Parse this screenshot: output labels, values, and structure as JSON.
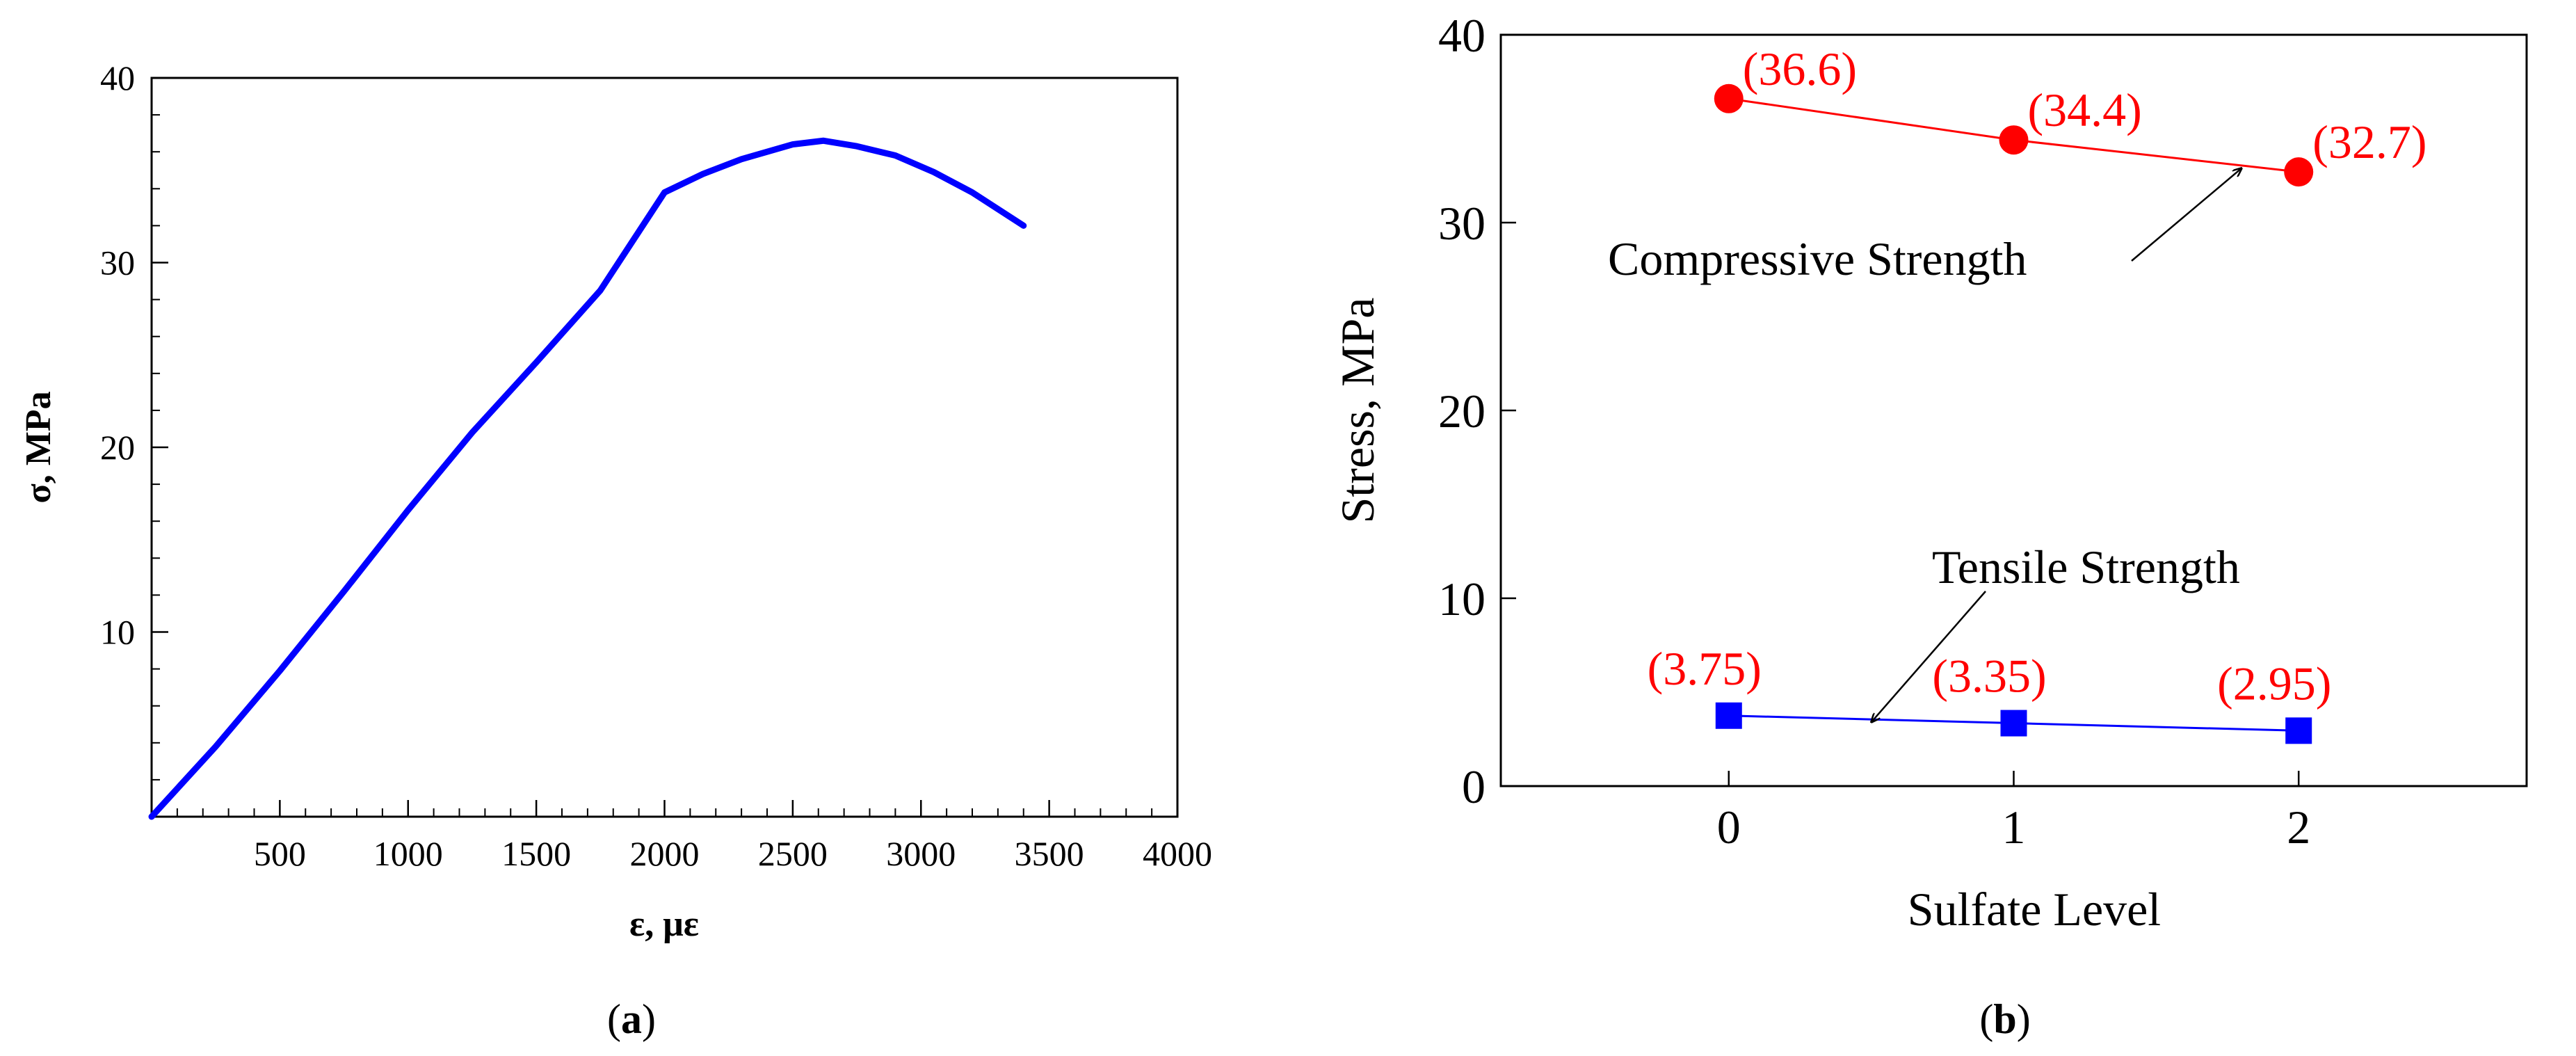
{
  "chart_data": [
    {
      "id": "a",
      "type": "line",
      "caption_letter": "a",
      "xlabel": "ε, με",
      "ylabel": "σ, MPa",
      "xlim": [
        0,
        4000
      ],
      "ylim": [
        0,
        40
      ],
      "x_ticks": [
        500,
        1000,
        1500,
        2000,
        2500,
        3000,
        3500,
        4000
      ],
      "x_tick_labels": [
        "500",
        "1000",
        "1500",
        "2000",
        "2500",
        "3000",
        "3500",
        "4000"
      ],
      "x_minor_step": 100,
      "y_ticks": [
        10,
        20,
        30,
        40
      ],
      "y_tick_labels": [
        "10",
        "20",
        "30",
        "40"
      ],
      "y_minor_step": 2,
      "grid": false,
      "series": [
        {
          "color": "#0000ff",
          "x": [
            0,
            250,
            500,
            750,
            1000,
            1250,
            1500,
            1750,
            2000,
            2150,
            2300,
            2500,
            2620,
            2750,
            2900,
            3050,
            3200,
            3400
          ],
          "y": [
            0,
            3.8,
            7.9,
            12.2,
            16.6,
            20.8,
            24.6,
            28.5,
            33.8,
            34.8,
            35.6,
            36.4,
            36.6,
            36.3,
            35.8,
            34.9,
            33.8,
            32.0
          ]
        }
      ]
    },
    {
      "id": "b",
      "type": "line",
      "caption_letter": "b",
      "xlabel": "Sulfate Level",
      "ylabel": "Stress, MPa",
      "xlim": [
        -0.8,
        2.8
      ],
      "ylim": [
        0,
        40
      ],
      "x_ticks": [
        0,
        1,
        2
      ],
      "x_tick_labels": [
        "0",
        "1",
        "2"
      ],
      "y_ticks": [
        0,
        10,
        20,
        30,
        40
      ],
      "y_tick_labels": [
        "0",
        "10",
        "20",
        "30",
        "40"
      ],
      "grid": false,
      "series": [
        {
          "name": "Compressive Strength",
          "marker": "circle",
          "color": "#ff0000",
          "label_color": "#ff0000",
          "x": [
            0,
            1,
            2
          ],
          "y": [
            36.6,
            34.4,
            32.7
          ],
          "data_labels": [
            "(36.6)",
            "(34.4)",
            "(32.7)"
          ]
        },
        {
          "name": "Tensile Strength",
          "marker": "square",
          "color": "#0000ff",
          "label_color": "#ff0000",
          "x": [
            0,
            1,
            2
          ],
          "y": [
            3.75,
            3.35,
            2.95
          ],
          "data_labels": [
            "(3.75)",
            "(3.35)",
            "(2.95)"
          ]
        }
      ],
      "annotations": [
        {
          "text": "Compressive Strength",
          "points_to_series": 0,
          "arrow_target": [
            1.8,
            32.9
          ]
        },
        {
          "text": "Tensile Strength",
          "points_to_series": 1,
          "arrow_target": [
            0.5,
            3.4
          ]
        }
      ]
    }
  ]
}
